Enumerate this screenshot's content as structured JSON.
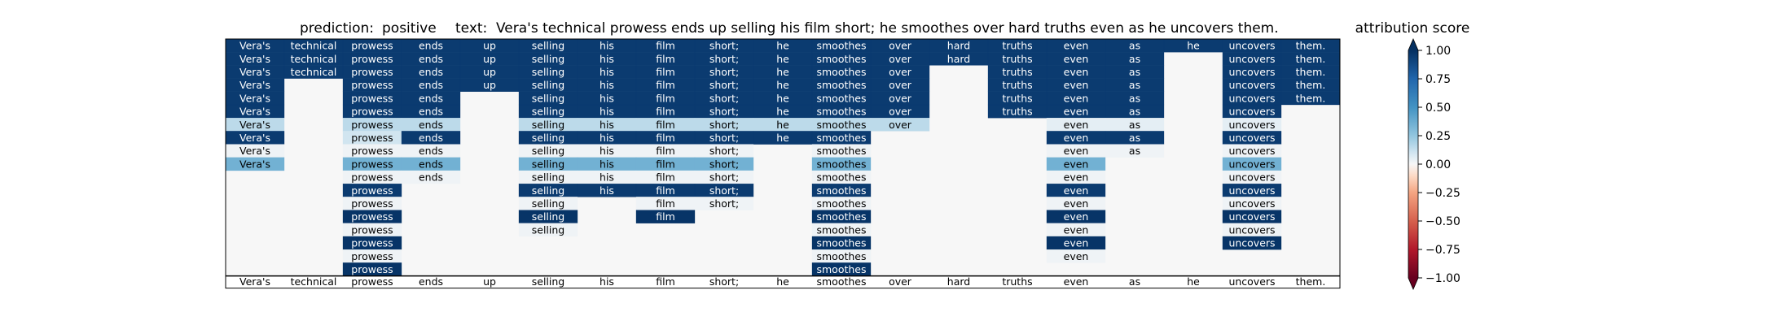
{
  "chart_data": {
    "type": "heatmap",
    "title_prediction_label": "prediction:",
    "title_prediction_value": "positive",
    "title_text_label": "text:",
    "title_text_value": "Vera's technical prowess ends up selling his film short; he smoothes over hard truths even as he uncovers them.",
    "tokens": [
      "Vera's",
      "technical",
      "prowess",
      "ends",
      "up",
      "selling",
      "his",
      "film",
      "short;",
      "he",
      "smoothes",
      "over",
      "hard",
      "truths",
      "even",
      "as",
      "he",
      "uncovers",
      "them."
    ],
    "rows": [
      [
        0.95,
        0.95,
        0.95,
        0.95,
        0.95,
        0.95,
        0.95,
        0.95,
        0.95,
        0.95,
        0.95,
        0.95,
        0.95,
        0.95,
        0.95,
        0.95,
        0.95,
        0.95,
        0.95
      ],
      [
        0.95,
        0.95,
        0.95,
        0.95,
        0.95,
        0.95,
        0.95,
        0.95,
        0.95,
        0.95,
        0.95,
        0.95,
        0.95,
        0.95,
        0.95,
        0.95,
        null,
        0.95,
        0.95
      ],
      [
        0.95,
        0.95,
        0.95,
        0.95,
        0.95,
        0.95,
        0.95,
        0.95,
        0.95,
        0.95,
        0.95,
        0.95,
        null,
        0.95,
        0.95,
        0.95,
        null,
        0.95,
        0.95
      ],
      [
        0.95,
        null,
        0.95,
        0.95,
        0.95,
        0.95,
        0.95,
        0.95,
        0.95,
        0.95,
        0.95,
        0.95,
        null,
        0.95,
        0.95,
        0.95,
        null,
        0.95,
        0.95
      ],
      [
        0.95,
        null,
        0.95,
        0.95,
        null,
        0.95,
        0.95,
        0.95,
        0.95,
        0.95,
        0.95,
        0.95,
        null,
        0.95,
        0.95,
        0.95,
        null,
        0.95,
        0.95
      ],
      [
        0.95,
        null,
        0.95,
        0.95,
        null,
        0.95,
        0.95,
        0.95,
        0.95,
        0.95,
        0.95,
        0.95,
        null,
        0.95,
        0.95,
        0.95,
        null,
        0.95,
        null
      ],
      [
        0.15,
        null,
        0.15,
        0.15,
        null,
        0.15,
        0.15,
        0.15,
        0.15,
        0.15,
        0.15,
        0.15,
        null,
        null,
        0.05,
        0.05,
        null,
        0.05,
        null
      ],
      [
        0.95,
        null,
        0.1,
        0.95,
        null,
        0.95,
        0.95,
        0.95,
        0.95,
        0.95,
        0.95,
        null,
        null,
        null,
        0.95,
        0.95,
        null,
        0.95,
        null
      ],
      [
        0.02,
        null,
        0.02,
        0.02,
        null,
        0.02,
        0.02,
        0.02,
        0.02,
        null,
        0.02,
        null,
        null,
        null,
        0.02,
        0.02,
        null,
        0.02,
        null
      ],
      [
        0.35,
        null,
        0.35,
        0.35,
        null,
        0.35,
        0.35,
        0.35,
        0.35,
        null,
        0.35,
        null,
        null,
        null,
        0.35,
        null,
        null,
        0.35,
        null
      ],
      [
        null,
        null,
        0.02,
        0.02,
        null,
        0.02,
        0.02,
        0.02,
        0.02,
        null,
        0.02,
        null,
        null,
        null,
        0.02,
        null,
        null,
        0.02,
        null
      ],
      [
        null,
        null,
        0.95,
        null,
        null,
        0.95,
        0.95,
        0.95,
        0.95,
        null,
        0.95,
        null,
        null,
        null,
        0.95,
        null,
        null,
        0.95,
        null
      ],
      [
        null,
        null,
        0.02,
        null,
        null,
        0.02,
        null,
        0.02,
        0.02,
        null,
        0.02,
        null,
        null,
        null,
        0.02,
        null,
        null,
        0.02,
        null
      ],
      [
        null,
        null,
        0.98,
        null,
        null,
        0.98,
        null,
        0.98,
        null,
        null,
        0.98,
        null,
        null,
        null,
        0.98,
        null,
        null,
        0.98,
        null
      ],
      [
        null,
        null,
        0.02,
        null,
        null,
        0.02,
        null,
        null,
        null,
        null,
        0.02,
        null,
        null,
        null,
        0.02,
        null,
        null,
        0.02,
        null
      ],
      [
        null,
        null,
        0.98,
        null,
        null,
        null,
        null,
        null,
        null,
        null,
        0.98,
        null,
        null,
        null,
        0.98,
        null,
        null,
        0.98,
        null
      ],
      [
        null,
        null,
        0.02,
        null,
        null,
        null,
        null,
        null,
        null,
        null,
        0.02,
        null,
        null,
        null,
        0.02,
        null,
        null,
        null,
        null
      ],
      [
        null,
        null,
        0.98,
        null,
        null,
        null,
        null,
        null,
        null,
        null,
        0.98,
        null,
        null,
        null,
        null,
        null,
        null,
        null,
        null
      ]
    ],
    "colorbar": {
      "label": "attribution score",
      "range": [
        -1.0,
        1.0
      ],
      "tick_labels": [
        "1.00",
        "0.75",
        "0.50",
        "0.25",
        "0.00",
        "−0.25",
        "−0.50",
        "−0.75",
        "−1.00"
      ],
      "colormap": "RdBu",
      "extend": "both"
    }
  }
}
